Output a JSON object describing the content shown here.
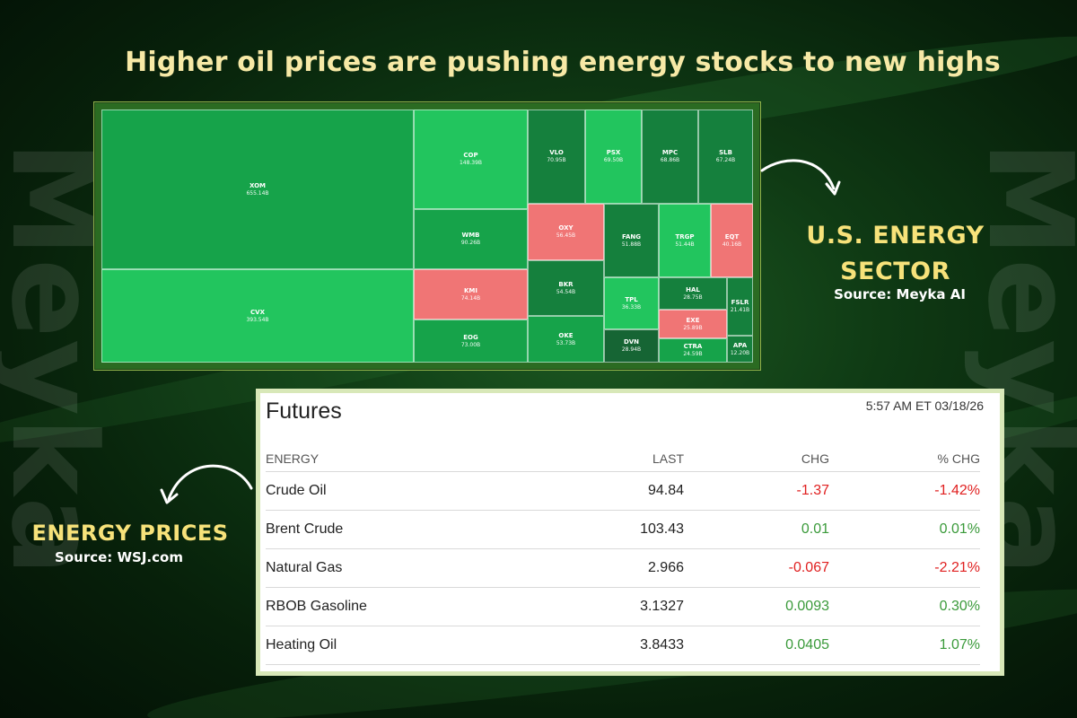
{
  "headline": "Higher oil prices are pushing energy stocks to new highs",
  "watermark": "Meyka",
  "sector_label": {
    "title_line1": "U.S. ENERGY",
    "title_line2": "SECTOR",
    "source": "Source: Meyka AI"
  },
  "prices_label": {
    "title": "ENERGY PRICES",
    "source": "Source: WSJ.com"
  },
  "colors": {
    "gold": "#f7e27a",
    "up_light": "#22c55e",
    "up_dark": "#166534",
    "down": "#f07575"
  },
  "treemap": {
    "tiles": [
      {
        "ticker": "XOM",
        "mcap": "655.14B"
      },
      {
        "ticker": "CVX",
        "mcap": "393.54B"
      },
      {
        "ticker": "COP",
        "mcap": "148.39B"
      },
      {
        "ticker": "VLO",
        "mcap": "70.95B"
      },
      {
        "ticker": "PSX",
        "mcap": "69.50B"
      },
      {
        "ticker": "MPC",
        "mcap": "68.86B"
      },
      {
        "ticker": "SLB",
        "mcap": "67.24B"
      },
      {
        "ticker": "WMB",
        "mcap": "90.26B"
      },
      {
        "ticker": "OXY",
        "mcap": "56.45B"
      },
      {
        "ticker": "FANG",
        "mcap": "51.88B"
      },
      {
        "ticker": "TRGP",
        "mcap": "51.44B"
      },
      {
        "ticker": "EQT",
        "mcap": "40.16B"
      },
      {
        "ticker": "KMI",
        "mcap": "74.14B"
      },
      {
        "ticker": "BKR",
        "mcap": "54.54B"
      },
      {
        "ticker": "TPL",
        "mcap": "36.33B"
      },
      {
        "ticker": "HAL",
        "mcap": "28.75B"
      },
      {
        "ticker": "FSLR",
        "mcap": "21.41B"
      },
      {
        "ticker": "EXE",
        "mcap": "25.89B"
      },
      {
        "ticker": "EOG",
        "mcap": "73.00B"
      },
      {
        "ticker": "OKE",
        "mcap": "53.73B"
      },
      {
        "ticker": "DVN",
        "mcap": "28.94B"
      },
      {
        "ticker": "CTRA",
        "mcap": "24.59B"
      },
      {
        "ticker": "APA",
        "mcap": "12.20B"
      }
    ]
  },
  "futures": {
    "title": "Futures",
    "timestamp": "5:57 AM ET 03/18/26",
    "columns": {
      "name": "ENERGY",
      "last": "LAST",
      "chg": "CHG",
      "pct": "% CHG"
    },
    "rows": [
      {
        "name": "Crude Oil",
        "last": "94.84",
        "chg": "-1.37",
        "pct": "-1.42%"
      },
      {
        "name": "Brent Crude",
        "last": "103.43",
        "chg": "0.01",
        "pct": "0.01%"
      },
      {
        "name": "Natural Gas",
        "last": "2.966",
        "chg": "-0.067",
        "pct": "-2.21%"
      },
      {
        "name": "RBOB Gasoline",
        "last": "3.1327",
        "chg": "0.0093",
        "pct": "0.30%"
      },
      {
        "name": "Heating Oil",
        "last": "3.8433",
        "chg": "0.0405",
        "pct": "1.07%"
      }
    ]
  }
}
